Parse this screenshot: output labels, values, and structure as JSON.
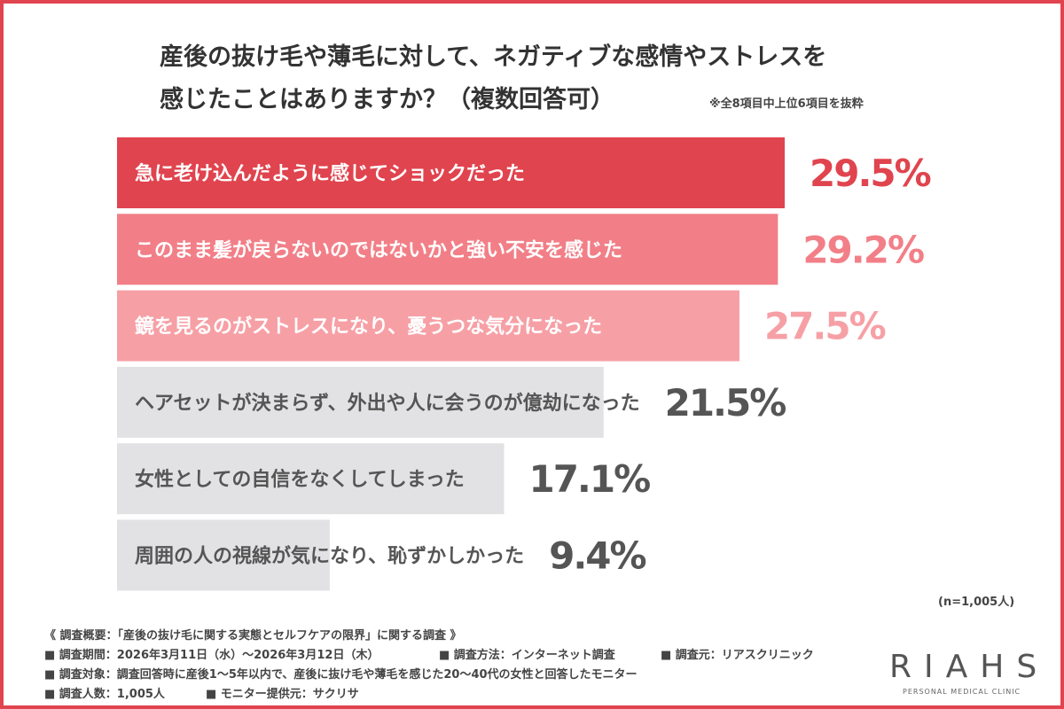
{
  "chart_data": {
    "type": "hbar",
    "title": [
      "産後の抜け毛や薄毛に対して、ネガティブな感情やストレスを",
      "感じたことはありますか？（複数回答可）"
    ],
    "note": "※全8項目中上位6項目を抜粋",
    "sample_size": "(n=1,005人)",
    "categories": [
      "急に老け込んだように感じてショックだった",
      "このまま髪が戻らないのではないかと強い不安を感じた",
      "鏡を見るのがストレスになり、憂うつな気分になった",
      "ヘアセットが決まらず、外出や人に会うのが億劫になった",
      "女性としての自信をなくしてしまった",
      "周囲の人の視線が気になり、恥ずかしかった"
    ],
    "values": [
      29.5,
      29.2,
      27.5,
      21.5,
      17.1,
      9.4
    ],
    "value_labels": [
      "29.5%",
      "29.2%",
      "27.5%",
      "21.5%",
      "17.1%",
      "9.4%"
    ],
    "colors": [
      "#e0444e",
      "#f27f87",
      "#f6a0a6",
      "#e2e2e5",
      "#e2e2e5",
      "#e2e2e5"
    ],
    "category_text_colors": [
      "#ffffff",
      "#ffffff",
      "#ffffff",
      "#555555",
      "#555555",
      "#555555"
    ],
    "label_colors": [
      "#e0444e",
      "#f27f87",
      "#f6a0a6",
      "#555555",
      "#555555",
      "#555555"
    ]
  },
  "footer": {
    "heading": "《 調査概要：「産後の抜け毛に関する実態とセルフケアの限界」に関する調査 》",
    "rows": [
      [
        "■ 調査期間：2026年3月11日（水）～2026年3月12日（木）",
        "■ 調査方法：インターネット調査",
        "■ 調査元：リアスクリニック"
      ],
      [
        "■ 調査対象：調査回答時に産後1～5年以内で、産後に抜け毛や薄毛を感じた20～40代の女性と回答したモニター"
      ],
      [
        "■ 調査人数：1,005人",
        "■ モニター提供元：サクリサ"
      ]
    ]
  },
  "logo": {
    "name": "RIAHS",
    "tagline": "PERSONAL MEDICAL CLINIC"
  }
}
